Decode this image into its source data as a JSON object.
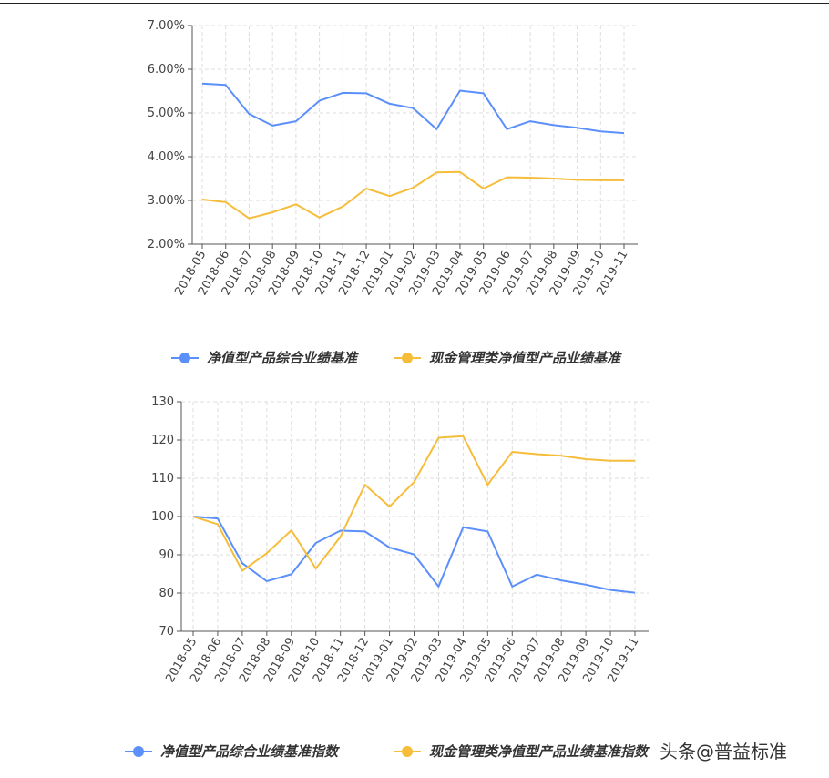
{
  "watermark": "头条@普益标准",
  "colors": {
    "blue": "#5B8FF9",
    "yellow": "#F6BD3B"
  },
  "chart_data": [
    {
      "type": "line",
      "categories": [
        "2018-05",
        "2018-06",
        "2018-07",
        "2018-08",
        "2018-09",
        "2018-10",
        "2018-11",
        "2018-12",
        "2019-01",
        "2019-02",
        "2019-03",
        "2019-04",
        "2019-05",
        "2019-06",
        "2019-07",
        "2019-08",
        "2019-09",
        "2019-10",
        "2019-11"
      ],
      "ylim": [
        2,
        7
      ],
      "yticks": [
        "2.00%",
        "3.00%",
        "4.00%",
        "5.00%",
        "6.00%",
        "7.00%"
      ],
      "ytick_values": [
        2,
        3,
        4,
        5,
        6,
        7
      ],
      "grid": true,
      "legend_position": "bottom",
      "series": [
        {
          "name": "净值型产品综合业绩基准",
          "color": "#5B8FF9",
          "values": [
            5.67,
            5.64,
            4.98,
            4.71,
            4.81,
            5.28,
            5.46,
            5.45,
            5.21,
            5.11,
            4.63,
            5.51,
            5.45,
            4.63,
            4.81,
            4.72,
            4.66,
            4.58,
            4.54
          ]
        },
        {
          "name": "现金管理类净值型产品业绩基准",
          "color": "#F6BD3B",
          "values": [
            3.02,
            2.96,
            2.59,
            2.73,
            2.91,
            2.61,
            2.86,
            3.27,
            3.1,
            3.29,
            3.64,
            3.65,
            3.27,
            3.53,
            3.52,
            3.5,
            3.47,
            3.46,
            3.46
          ]
        }
      ]
    },
    {
      "type": "line",
      "categories": [
        "2018-05",
        "2018-06",
        "2018-07",
        "2018-08",
        "2018-09",
        "2018-10",
        "2018-11",
        "2018-12",
        "2019-01",
        "2019-02",
        "2019-03",
        "2019-04",
        "2019-05",
        "2019-06",
        "2019-07",
        "2019-08",
        "2019-09",
        "2019-10",
        "2019-11"
      ],
      "ylim": [
        70,
        130
      ],
      "yticks": [
        "70",
        "80",
        "90",
        "100",
        "110",
        "120",
        "130"
      ],
      "ytick_values": [
        70,
        80,
        90,
        100,
        110,
        120,
        130
      ],
      "grid": true,
      "legend_position": "bottom",
      "series": [
        {
          "name": "净值型产品综合业绩基准指数",
          "color": "#5B8FF9",
          "values": [
            100,
            99.5,
            87.8,
            83.1,
            84.9,
            93.1,
            96.3,
            96.1,
            91.9,
            90.1,
            81.7,
            97.2,
            96.1,
            81.7,
            84.8,
            83.3,
            82.2,
            80.8,
            80.1
          ]
        },
        {
          "name": "现金管理类净值型产品业绩基准指数",
          "color": "#F6BD3B",
          "values": [
            100,
            98.0,
            85.8,
            90.4,
            96.4,
            86.4,
            94.7,
            108.3,
            102.6,
            109.0,
            120.6,
            121.0,
            108.3,
            116.9,
            116.3,
            115.9,
            115.0,
            114.6,
            114.6
          ]
        }
      ]
    }
  ]
}
